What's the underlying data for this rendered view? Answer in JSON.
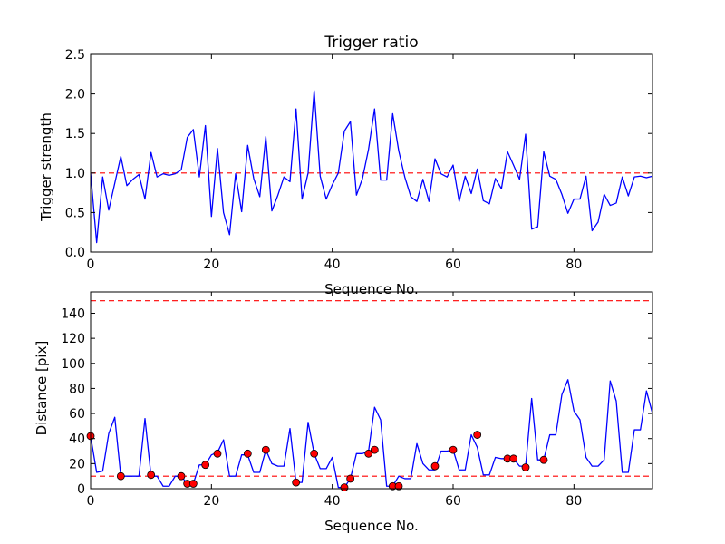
{
  "chart_data": [
    {
      "type": "line",
      "title": "Trigger ratio",
      "xlabel": "Sequence No.",
      "ylabel": "Trigger strength",
      "xlim": [
        0,
        93
      ],
      "ylim": [
        0,
        2.5
      ],
      "xticks": [
        0,
        20,
        40,
        60,
        80
      ],
      "yticks": [
        0.0,
        0.5,
        1.0,
        1.5,
        2.0,
        2.5
      ],
      "ytick_labels": [
        "0.0",
        "0.5",
        "1.0",
        "1.5",
        "2.0",
        "2.5"
      ],
      "color": "#0000ff",
      "series": [
        {
          "name": "trigger strength",
          "x": [
            0,
            1,
            2,
            3,
            4,
            5,
            6,
            7,
            8,
            9,
            10,
            11,
            12,
            13,
            14,
            15,
            16,
            17,
            18,
            19,
            20,
            21,
            22,
            23,
            24,
            25,
            26,
            27,
            28,
            29,
            30,
            31,
            32,
            33,
            34,
            35,
            36,
            37,
            38,
            39,
            40,
            41,
            42,
            43,
            44,
            45,
            46,
            47,
            48,
            49,
            50,
            51,
            52,
            53,
            54,
            55,
            56,
            57,
            58,
            59,
            60,
            61,
            62,
            63,
            64,
            65,
            66,
            67,
            68,
            69,
            70,
            71,
            72,
            73,
            74,
            75,
            76,
            77,
            78,
            79,
            80,
            81,
            82,
            83,
            84,
            85,
            86,
            87,
            88,
            89,
            90,
            91,
            92,
            93
          ],
          "y": [
            1.0,
            0.12,
            0.95,
            0.53,
            0.87,
            1.21,
            0.84,
            0.92,
            0.98,
            0.67,
            1.26,
            0.95,
            0.99,
            0.97,
            0.99,
            1.04,
            1.45,
            1.55,
            0.95,
            1.6,
            0.45,
            1.31,
            0.5,
            0.22,
            0.99,
            0.51,
            1.35,
            0.93,
            0.7,
            1.46,
            0.52,
            0.72,
            0.95,
            0.89,
            1.81,
            0.67,
            1.0,
            2.04,
            0.96,
            0.67,
            0.85,
            1.0,
            1.53,
            1.65,
            0.72,
            0.93,
            1.3,
            1.81,
            0.91,
            0.91,
            1.75,
            1.28,
            0.95,
            0.7,
            0.64,
            0.92,
            0.64,
            1.18,
            0.99,
            0.95,
            1.1,
            0.64,
            0.96,
            0.74,
            1.05,
            0.65,
            0.61,
            0.93,
            0.8,
            1.27,
            1.1,
            0.92,
            1.49,
            0.29,
            0.32,
            1.27,
            0.96,
            0.92,
            0.73,
            0.49,
            0.67,
            0.67,
            0.96,
            0.27,
            0.38,
            0.73,
            0.59,
            0.62,
            0.95,
            0.71,
            0.95,
            0.96,
            0.94,
            0.96
          ]
        }
      ],
      "hlines": [
        {
          "y": 1.0,
          "style": "dashed",
          "color": "#ff0000"
        }
      ]
    },
    {
      "type": "line",
      "title": "",
      "xlabel": "Sequence No.",
      "ylabel": "Distance [pix]",
      "xlim": [
        0,
        93
      ],
      "ylim": [
        0,
        157
      ],
      "xticks": [
        0,
        20,
        40,
        60,
        80
      ],
      "yticks": [
        0,
        20,
        40,
        60,
        80,
        100,
        120,
        140
      ],
      "ytick_labels": [
        "0",
        "20",
        "40",
        "60",
        "80",
        "100",
        "120",
        "140"
      ],
      "color": "#0000ff",
      "series": [
        {
          "name": "distance",
          "x": [
            0,
            1,
            2,
            3,
            4,
            5,
            6,
            7,
            8,
            9,
            10,
            11,
            12,
            13,
            14,
            15,
            16,
            17,
            18,
            19,
            20,
            21,
            22,
            23,
            24,
            25,
            26,
            27,
            28,
            29,
            30,
            31,
            32,
            33,
            34,
            35,
            36,
            37,
            38,
            39,
            40,
            41,
            42,
            43,
            44,
            45,
            46,
            47,
            48,
            49,
            50,
            51,
            52,
            53,
            54,
            55,
            56,
            57,
            58,
            59,
            60,
            61,
            62,
            63,
            64,
            65,
            66,
            67,
            68,
            69,
            70,
            71,
            72,
            73,
            74,
            75,
            76,
            77,
            78,
            79,
            80,
            81,
            82,
            83,
            84,
            85,
            86,
            87,
            88,
            89,
            90,
            91,
            92,
            93
          ],
          "y": [
            42,
            13,
            14,
            44,
            57,
            10,
            10,
            10,
            10,
            56,
            10,
            10,
            2,
            2,
            10,
            10,
            4,
            4,
            19,
            19,
            27,
            29,
            39,
            10,
            10,
            27,
            27,
            13,
            13,
            31,
            20,
            18,
            18,
            48,
            5,
            5,
            53,
            28,
            16,
            16,
            25,
            1,
            1,
            8,
            28,
            28,
            30,
            65,
            55,
            2,
            2,
            10,
            8,
            8,
            36,
            20,
            15,
            15,
            30,
            30,
            31,
            15,
            15,
            43,
            33,
            11,
            11,
            25,
            24,
            24,
            24,
            18,
            18,
            72,
            23,
            23,
            43,
            43,
            75,
            87,
            62,
            55,
            25,
            18,
            18,
            23,
            86,
            70,
            13,
            13,
            47,
            47,
            78,
            60
          ]
        }
      ],
      "markers": {
        "x": [
          0,
          5,
          10,
          15,
          16,
          17,
          19,
          21,
          26,
          29,
          34,
          37,
          42,
          43,
          46,
          47,
          50,
          51,
          57,
          60,
          64,
          69,
          70,
          72,
          75
        ],
        "y": [
          42,
          10,
          11,
          10,
          4,
          4,
          19,
          28,
          28,
          31,
          5,
          28,
          1,
          8,
          28,
          31,
          2,
          2,
          18,
          31,
          43,
          24,
          24,
          17,
          23
        ],
        "color": "#ff0000"
      },
      "hlines": [
        {
          "y": 150,
          "style": "dashed",
          "color": "#ff0000"
        },
        {
          "y": 10,
          "style": "dashed",
          "color": "#ff0000"
        }
      ]
    }
  ]
}
